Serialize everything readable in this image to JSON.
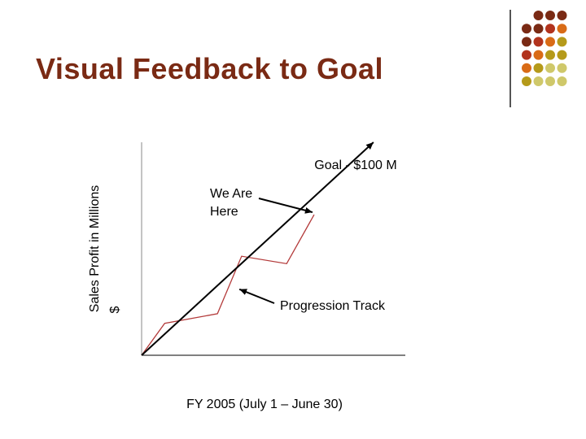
{
  "slide": {
    "title": "Visual Feedback to Goal"
  },
  "colors": {
    "title": "#7a2a14",
    "dot_palette": [
      "#7a2a14",
      "#b2331d",
      "#d96b16",
      "#b59a1a",
      "#cfc86a"
    ],
    "progression_line": "#b33a3a",
    "goal_line": "#000000"
  },
  "chart_data": {
    "type": "line",
    "title": "",
    "xlabel": "FY 2005 (July 1 – June 30)",
    "ylabel": "Sales Profit in Millions $",
    "ylim": [
      0,
      100
    ],
    "xlim": [
      0,
      12
    ],
    "grid": false,
    "series": [
      {
        "role": "goal",
        "x": [
          0,
          10.55
        ],
        "y": [
          0,
          100
        ]
      },
      {
        "role": "progression",
        "x": [
          0,
          1.05,
          3.45,
          4.55,
          6.6,
          7.85
        ],
        "y": [
          0,
          15,
          19.5,
          46.5,
          43,
          66
        ]
      }
    ],
    "annotations": [
      {
        "text": "Goal - $100 M",
        "x": 10.55,
        "y": 100,
        "arrow": true
      },
      {
        "text": "We Are\nHere",
        "x": 7.85,
        "y": 66,
        "arrow": true
      },
      {
        "text": "Progression Track",
        "x": 4.45,
        "y": 31,
        "arrow": true
      }
    ]
  }
}
